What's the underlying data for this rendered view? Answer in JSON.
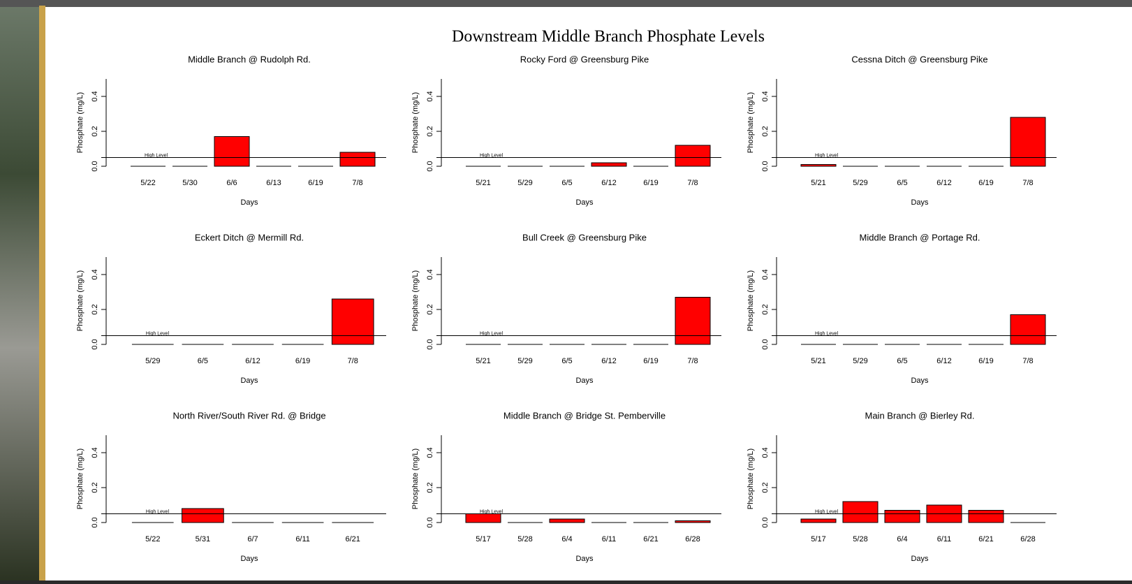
{
  "title": "Downstream Middle Branch Phosphate Levels",
  "chart_data": [
    {
      "type": "bar",
      "title": "Middle Branch @ Rudolph Rd.",
      "categories": [
        "5/22",
        "5/30",
        "6/6",
        "6/13",
        "6/19",
        "7/8"
      ],
      "values": [
        0,
        0,
        0.17,
        0,
        0,
        0.08
      ],
      "color": "#ff0000",
      "x_label": "Days",
      "y_label": "Phosphate (mg/L)",
      "ylim": [
        0,
        0.5
      ],
      "yticks": [
        {
          "value": 0,
          "label": "0.0"
        },
        0.2,
        0.4
      ],
      "threshold": {
        "value": 0.05,
        "label": "High Level"
      }
    },
    {
      "type": "bar",
      "title": "Rocky Ford @ Greensburg Pike",
      "categories": [
        "5/21",
        "5/29",
        "6/5",
        "6/12",
        "6/19",
        "7/8"
      ],
      "values": [
        0,
        0,
        0,
        0.02,
        0,
        0.12
      ],
      "color": "#ff0000",
      "x_label": "Days",
      "y_label": "Phosphate (mg/L)",
      "ylim": [
        0,
        0.5
      ],
      "yticks": [
        {
          "value": 0,
          "label": "0.0"
        },
        0.2,
        0.4
      ],
      "threshold": {
        "value": 0.05,
        "label": "High Level"
      }
    },
    {
      "type": "bar",
      "title": "Cessna Ditch @ Greensburg Pike",
      "categories": [
        "5/21",
        "5/29",
        "6/5",
        "6/12",
        "6/19",
        "7/8"
      ],
      "values": [
        0.01,
        0,
        0,
        0,
        0,
        0.28
      ],
      "color": "#ff0000",
      "x_label": "Days",
      "y_label": "Phosphate (mg/L)",
      "ylim": [
        0,
        0.5
      ],
      "yticks": [
        {
          "value": 0,
          "label": "0.0"
        },
        0.2,
        0.4
      ],
      "threshold": {
        "value": 0.05,
        "label": "High Level"
      }
    },
    {
      "type": "bar",
      "title": "Eckert Ditch @ Mermill Rd.",
      "categories": [
        "5/29",
        "6/5",
        "6/12",
        "6/19",
        "7/8"
      ],
      "values": [
        0,
        0,
        0,
        0,
        0.26
      ],
      "color": "#ff0000",
      "x_label": "Days",
      "y_label": "Phosphate (mg/L)",
      "ylim": [
        0,
        0.5
      ],
      "yticks": [
        {
          "value": 0,
          "label": "0.0"
        },
        0.2,
        0.4
      ],
      "threshold": {
        "value": 0.05,
        "label": "High Level"
      }
    },
    {
      "type": "bar",
      "title": "Bull Creek @ Greensburg Pike",
      "categories": [
        "5/21",
        "5/29",
        "6/5",
        "6/12",
        "6/19",
        "7/8"
      ],
      "values": [
        0,
        0,
        0,
        0,
        0,
        0.27
      ],
      "color": "#ff0000",
      "x_label": "Days",
      "y_label": "Phosphate (mg/L)",
      "ylim": [
        0,
        0.5
      ],
      "yticks": [
        {
          "value": 0,
          "label": "0.0"
        },
        0.2,
        0.4
      ],
      "threshold": {
        "value": 0.05,
        "label": "High Level"
      }
    },
    {
      "type": "bar",
      "title": "Middle Branch @ Portage Rd.",
      "categories": [
        "5/21",
        "5/29",
        "6/5",
        "6/12",
        "6/19",
        "7/8"
      ],
      "values": [
        0,
        0,
        0,
        0,
        0,
        0.17
      ],
      "color": "#ff0000",
      "x_label": "Days",
      "y_label": "Phosphate (mg/L)",
      "ylim": [
        0,
        0.5
      ],
      "yticks": [
        {
          "value": 0,
          "label": "0.0"
        },
        0.2,
        0.4
      ],
      "threshold": {
        "value": 0.05,
        "label": "High Level"
      }
    },
    {
      "type": "bar",
      "title": "North River/South River Rd. @ Bridge",
      "categories": [
        "5/22",
        "5/31",
        "6/7",
        "6/11",
        "6/21"
      ],
      "values": [
        0,
        0.08,
        0,
        0,
        0
      ],
      "color": "#ff0000",
      "x_label": "Days",
      "y_label": "Phosphate (mg/L)",
      "ylim": [
        0,
        0.5
      ],
      "yticks": [
        {
          "value": 0,
          "label": "0.0"
        },
        0.2,
        0.4
      ],
      "threshold": {
        "value": 0.05,
        "label": "High Level"
      }
    },
    {
      "type": "bar",
      "title": "Middle Branch @ Bridge St. Pemberville",
      "categories": [
        "5/17",
        "5/28",
        "6/4",
        "6/11",
        "6/21",
        "6/28"
      ],
      "values": [
        0.05,
        0,
        0.02,
        0,
        0,
        0.01
      ],
      "color": "#ff0000",
      "x_label": "Days",
      "y_label": "Phosphate (mg/L)",
      "ylim": [
        0,
        0.5
      ],
      "yticks": [
        {
          "value": 0,
          "label": "0.0"
        },
        0.2,
        0.4
      ],
      "threshold": {
        "value": 0.05,
        "label": "High Level"
      }
    },
    {
      "type": "bar",
      "title": "Main Branch @ Bierley Rd.",
      "categories": [
        "5/17",
        "5/28",
        "6/4",
        "6/11",
        "6/21",
        "6/28"
      ],
      "values": [
        0.02,
        0.12,
        0.07,
        0.1,
        0.07,
        0
      ],
      "color": "#ff0000",
      "x_label": "Days",
      "y_label": "Phosphate (mg/L)",
      "ylim": [
        0,
        0.5
      ],
      "yticks": [
        {
          "value": 0,
          "label": "0.0"
        },
        0.2,
        0.4
      ],
      "threshold": {
        "value": 0.05,
        "label": "High Level"
      }
    }
  ]
}
